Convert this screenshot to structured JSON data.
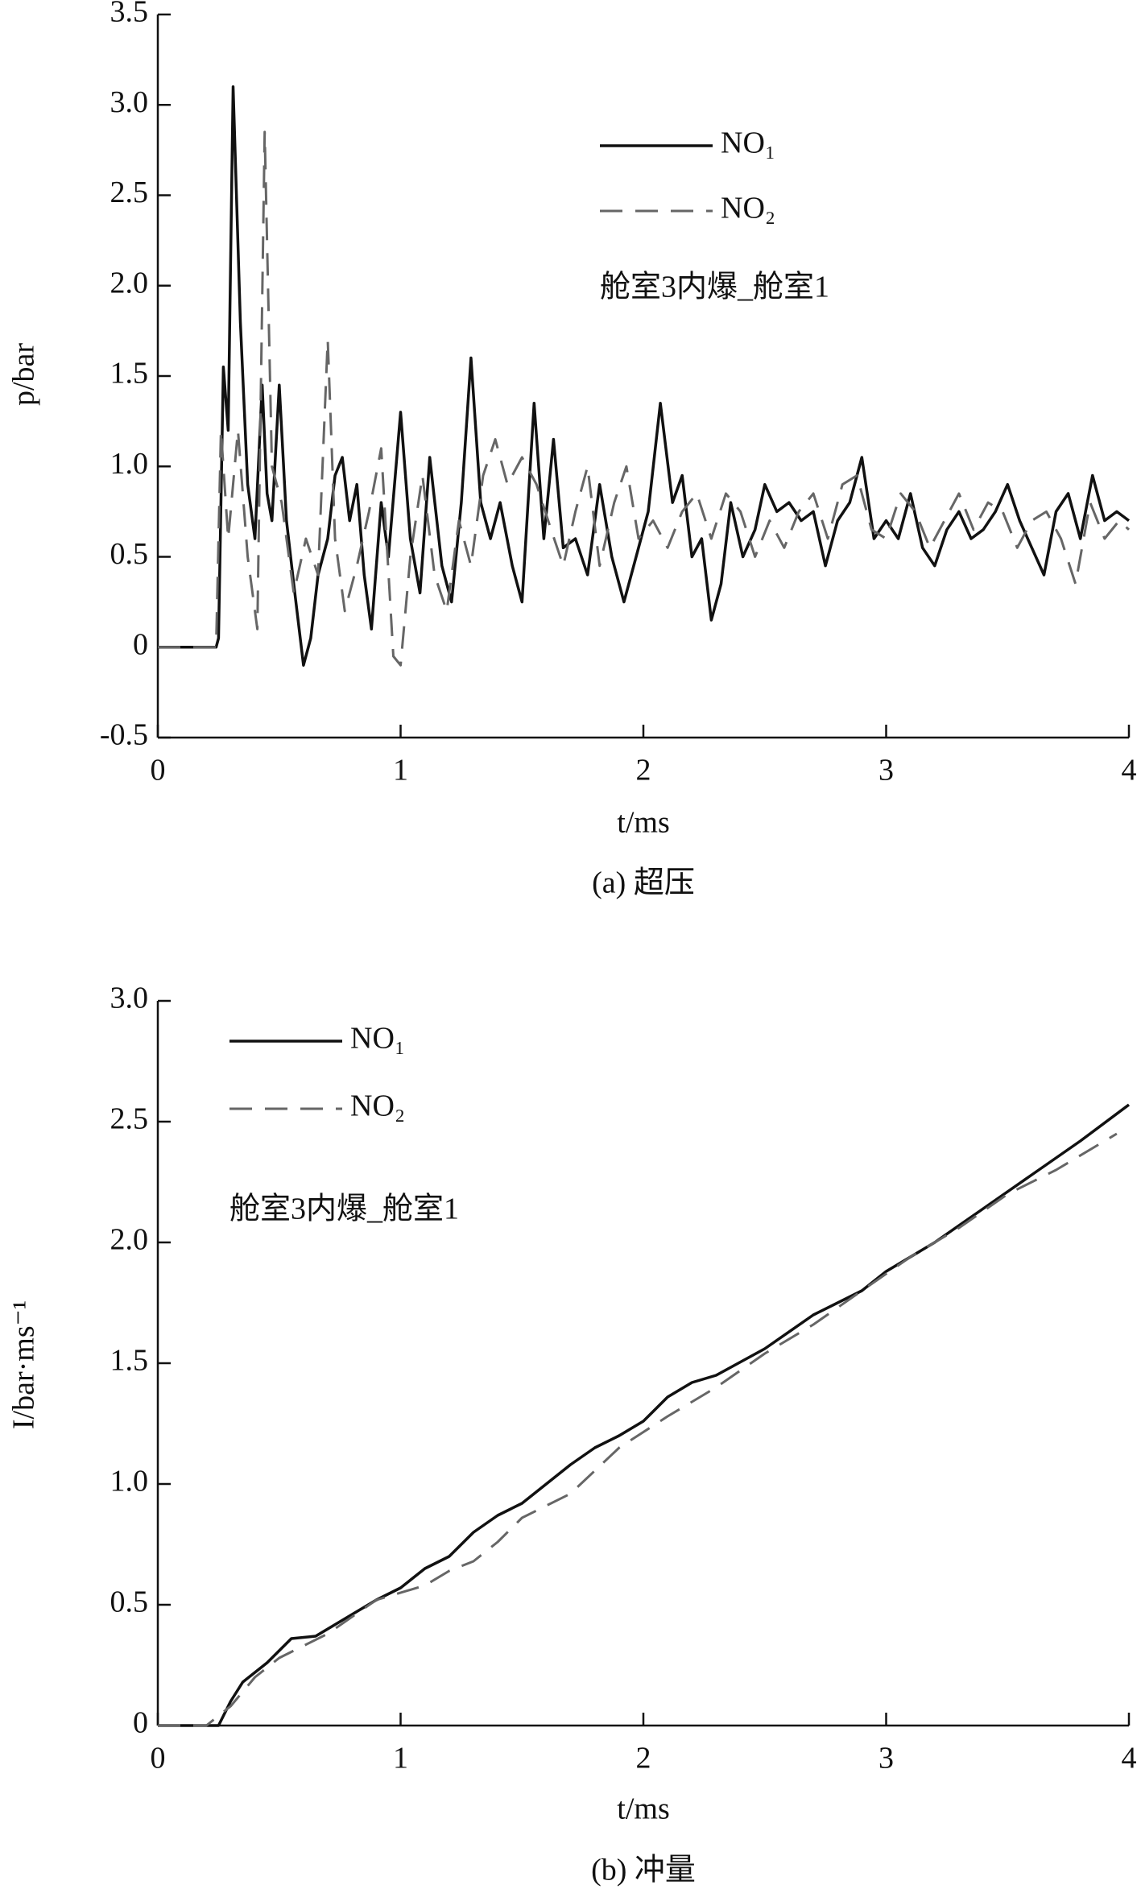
{
  "chart_data": [
    {
      "type": "line",
      "caption": "(a) 超压",
      "xlabel": "t/ms",
      "ylabel": "p/bar",
      "annotation": "舱室3内爆_舱室1",
      "xlim": [
        0,
        4
      ],
      "xticks": [
        0,
        1,
        2,
        3,
        4
      ],
      "ylim": [
        -0.5,
        3.5
      ],
      "yticks": [
        -0.5,
        0,
        0.5,
        {
          "value": 1,
          "label": "1.0"
        },
        1.5,
        {
          "value": 2,
          "label": "2.0"
        },
        2.5,
        {
          "value": 3,
          "label": "3.0"
        },
        3.5
      ],
      "series": [
        {
          "name": "NO₁",
          "color": "#111111",
          "dashed": false,
          "x": [
            0,
            0.24,
            0.25,
            0.27,
            0.29,
            0.31,
            0.34,
            0.37,
            0.4,
            0.43,
            0.45,
            0.47,
            0.5,
            0.53,
            0.56,
            0.6,
            0.63,
            0.66,
            0.7,
            0.73,
            0.76,
            0.79,
            0.82,
            0.85,
            0.88,
            0.92,
            0.95,
            1.0,
            1.04,
            1.08,
            1.12,
            1.17,
            1.21,
            1.25,
            1.29,
            1.33,
            1.37,
            1.41,
            1.46,
            1.5,
            1.55,
            1.59,
            1.63,
            1.67,
            1.72,
            1.77,
            1.82,
            1.87,
            1.92,
            1.97,
            2.02,
            2.07,
            2.12,
            2.16,
            2.2,
            2.24,
            2.28,
            2.32,
            2.36,
            2.41,
            2.46,
            2.5,
            2.55,
            2.6,
            2.65,
            2.7,
            2.75,
            2.8,
            2.85,
            2.9,
            2.95,
            3.0,
            3.05,
            3.1,
            3.15,
            3.2,
            3.25,
            3.3,
            3.35,
            3.4,
            3.45,
            3.5,
            3.55,
            3.6,
            3.65,
            3.7,
            3.75,
            3.8,
            3.85,
            3.9,
            3.95,
            4.0
          ],
          "values": [
            0,
            0,
            0.05,
            1.55,
            1.2,
            3.1,
            1.8,
            0.9,
            0.6,
            1.45,
            0.85,
            0.7,
            1.45,
            0.7,
            0.35,
            -0.1,
            0.05,
            0.4,
            0.6,
            0.95,
            1.05,
            0.7,
            0.9,
            0.4,
            0.1,
            0.8,
            0.5,
            1.3,
            0.6,
            0.3,
            1.05,
            0.45,
            0.25,
            0.8,
            1.6,
            0.8,
            0.6,
            0.8,
            0.45,
            0.25,
            1.35,
            0.6,
            1.15,
            0.55,
            0.6,
            0.4,
            0.9,
            0.5,
            0.25,
            0.5,
            0.75,
            1.35,
            0.8,
            0.95,
            0.5,
            0.6,
            0.15,
            0.35,
            0.8,
            0.5,
            0.65,
            0.9,
            0.75,
            0.8,
            0.7,
            0.75,
            0.45,
            0.7,
            0.8,
            1.05,
            0.6,
            0.7,
            0.6,
            0.85,
            0.55,
            0.45,
            0.65,
            0.75,
            0.6,
            0.65,
            0.75,
            0.9,
            0.7,
            0.55,
            0.4,
            0.75,
            0.85,
            0.6,
            0.95,
            0.7,
            0.75,
            0.7
          ]
        },
        {
          "name": "NO₂",
          "color": "#666666",
          "dashed": true,
          "x": [
            0,
            0.24,
            0.26,
            0.29,
            0.33,
            0.37,
            0.41,
            0.44,
            0.47,
            0.51,
            0.56,
            0.61,
            0.66,
            0.7,
            0.73,
            0.77,
            0.82,
            0.87,
            0.92,
            0.97,
            1.0,
            1.04,
            1.09,
            1.14,
            1.19,
            1.24,
            1.29,
            1.34,
            1.39,
            1.44,
            1.5,
            1.56,
            1.62,
            1.67,
            1.72,
            1.77,
            1.82,
            1.88,
            1.93,
            1.98,
            2.04,
            2.1,
            2.16,
            2.22,
            2.28,
            2.34,
            2.4,
            2.46,
            2.52,
            2.58,
            2.64,
            2.7,
            2.76,
            2.82,
            2.88,
            2.94,
            3.0,
            3.06,
            3.12,
            3.18,
            3.24,
            3.3,
            3.36,
            3.42,
            3.48,
            3.54,
            3.6,
            3.66,
            3.72,
            3.78,
            3.84,
            3.9,
            3.96,
            4.0
          ],
          "values": [
            0,
            0,
            1.2,
            0.6,
            1.2,
            0.5,
            0.1,
            2.85,
            1.0,
            0.8,
            0.3,
            0.6,
            0.4,
            1.7,
            0.6,
            0.2,
            0.45,
            0.75,
            1.1,
            -0.05,
            -0.1,
            0.5,
            0.95,
            0.4,
            0.2,
            0.7,
            0.45,
            0.95,
            1.15,
            0.9,
            1.05,
            0.9,
            0.65,
            0.45,
            0.75,
            1.0,
            0.45,
            0.8,
            1.0,
            0.6,
            0.7,
            0.55,
            0.75,
            0.85,
            0.6,
            0.85,
            0.75,
            0.5,
            0.7,
            0.55,
            0.75,
            0.85,
            0.6,
            0.9,
            0.95,
            0.65,
            0.6,
            0.85,
            0.75,
            0.55,
            0.7,
            0.85,
            0.65,
            0.8,
            0.75,
            0.55,
            0.7,
            0.75,
            0.6,
            0.35,
            0.8,
            0.6,
            0.7,
            0.65
          ]
        }
      ]
    },
    {
      "type": "line",
      "caption": "(b) 冲量",
      "xlabel": "t/ms",
      "ylabel": "I/bar·ms⁻¹",
      "annotation": "舱室3内爆_舱室1",
      "xlim": [
        0,
        4
      ],
      "xticks": [
        0,
        1,
        2,
        3,
        4
      ],
      "ylim": [
        0,
        3
      ],
      "yticks": [
        0,
        0.5,
        {
          "value": 1,
          "label": "1.0"
        },
        1.5,
        {
          "value": 2,
          "label": "2.0"
        },
        2.5,
        {
          "value": 3,
          "label": "3.0"
        }
      ],
      "series": [
        {
          "name": "NO₁",
          "color": "#111111",
          "dashed": false,
          "x": [
            0,
            0.25,
            0.3,
            0.35,
            0.45,
            0.55,
            0.65,
            0.8,
            0.9,
            1.0,
            1.1,
            1.2,
            1.3,
            1.4,
            1.5,
            1.6,
            1.7,
            1.8,
            1.9,
            2.0,
            2.1,
            2.2,
            2.3,
            2.5,
            2.7,
            2.9,
            3.0,
            3.2,
            3.4,
            3.6,
            3.8,
            4.0
          ],
          "values": [
            0,
            0,
            0.1,
            0.18,
            0.26,
            0.36,
            0.37,
            0.46,
            0.52,
            0.57,
            0.65,
            0.7,
            0.8,
            0.87,
            0.92,
            1.0,
            1.08,
            1.15,
            1.2,
            1.26,
            1.36,
            1.42,
            1.45,
            1.56,
            1.7,
            1.8,
            1.88,
            2.0,
            2.14,
            2.28,
            2.42,
            2.57
          ]
        },
        {
          "name": "NO₂",
          "color": "#666666",
          "dashed": true,
          "x": [
            0,
            0.2,
            0.3,
            0.4,
            0.5,
            0.7,
            0.9,
            1.1,
            1.2,
            1.3,
            1.4,
            1.5,
            1.7,
            1.9,
            2.1,
            2.3,
            2.5,
            2.7,
            2.9,
            3.1,
            3.3,
            3.5,
            3.7,
            3.95
          ],
          "values": [
            0,
            0,
            0.08,
            0.2,
            0.28,
            0.38,
            0.52,
            0.58,
            0.64,
            0.68,
            0.76,
            0.86,
            0.96,
            1.15,
            1.28,
            1.4,
            1.54,
            1.66,
            1.8,
            1.94,
            2.06,
            2.2,
            2.3,
            2.45
          ]
        }
      ]
    }
  ]
}
